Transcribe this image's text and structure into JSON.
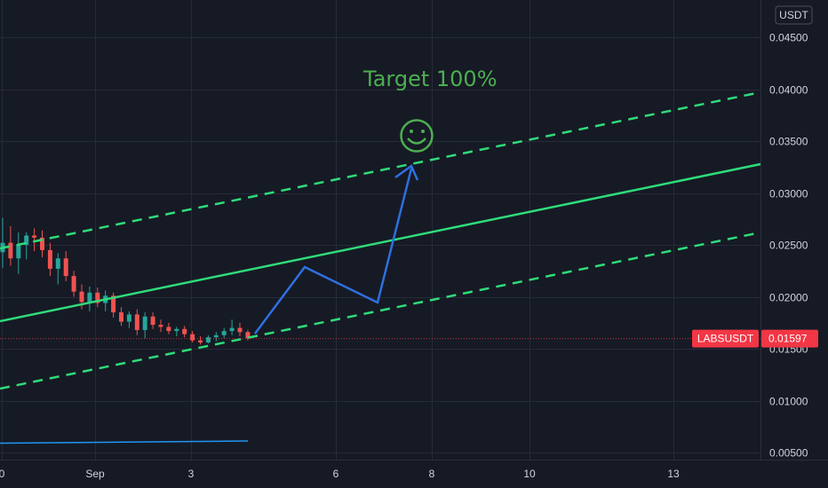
{
  "chart_data": {
    "type": "candlestick",
    "symbol": "LABSUSDT",
    "currency": "USDT",
    "last_price": "0.01597",
    "y_ticks": [
      "0.04500",
      "0.04000",
      "0.03500",
      "0.03000",
      "0.02500",
      "0.02000",
      "0.01500",
      "0.01000",
      "0.00500"
    ],
    "ylim": [
      0.0035,
      0.048
    ],
    "x_ticks": [
      "0",
      "Sep",
      "3",
      "6",
      "8",
      "10",
      "13"
    ],
    "annotation": "Target 100%",
    "candles": [
      {
        "o": 0.0243,
        "h": 0.0276,
        "l": 0.0228,
        "c": 0.0252
      },
      {
        "o": 0.0252,
        "h": 0.0268,
        "l": 0.023,
        "c": 0.0237
      },
      {
        "o": 0.0237,
        "h": 0.0262,
        "l": 0.0222,
        "c": 0.025
      },
      {
        "o": 0.025,
        "h": 0.0262,
        "l": 0.0236,
        "c": 0.0259
      },
      {
        "o": 0.0259,
        "h": 0.0266,
        "l": 0.0244,
        "c": 0.0257
      },
      {
        "o": 0.0257,
        "h": 0.0264,
        "l": 0.0238,
        "c": 0.0245
      },
      {
        "o": 0.0245,
        "h": 0.0252,
        "l": 0.022,
        "c": 0.0227
      },
      {
        "o": 0.0227,
        "h": 0.0242,
        "l": 0.0212,
        "c": 0.0237
      },
      {
        "o": 0.0237,
        "h": 0.0244,
        "l": 0.0215,
        "c": 0.022
      },
      {
        "o": 0.022,
        "h": 0.0225,
        "l": 0.02,
        "c": 0.0205
      },
      {
        "o": 0.0205,
        "h": 0.0212,
        "l": 0.0188,
        "c": 0.0195
      },
      {
        "o": 0.0195,
        "h": 0.021,
        "l": 0.0186,
        "c": 0.0204
      },
      {
        "o": 0.0204,
        "h": 0.0209,
        "l": 0.019,
        "c": 0.0194
      },
      {
        "o": 0.0194,
        "h": 0.0206,
        "l": 0.0186,
        "c": 0.0201
      },
      {
        "o": 0.0201,
        "h": 0.0204,
        "l": 0.018,
        "c": 0.0185
      },
      {
        "o": 0.0185,
        "h": 0.019,
        "l": 0.0172,
        "c": 0.0176
      },
      {
        "o": 0.0176,
        "h": 0.0186,
        "l": 0.017,
        "c": 0.0183
      },
      {
        "o": 0.0183,
        "h": 0.0188,
        "l": 0.0163,
        "c": 0.0168
      },
      {
        "o": 0.0168,
        "h": 0.0185,
        "l": 0.016,
        "c": 0.0181
      },
      {
        "o": 0.0181,
        "h": 0.0185,
        "l": 0.0169,
        "c": 0.0173
      },
      {
        "o": 0.0173,
        "h": 0.0178,
        "l": 0.0166,
        "c": 0.0171
      },
      {
        "o": 0.0171,
        "h": 0.0175,
        "l": 0.0164,
        "c": 0.0167
      },
      {
        "o": 0.0167,
        "h": 0.0171,
        "l": 0.0162,
        "c": 0.0169
      },
      {
        "o": 0.0169,
        "h": 0.0172,
        "l": 0.0161,
        "c": 0.0164
      },
      {
        "o": 0.0164,
        "h": 0.0167,
        "l": 0.0156,
        "c": 0.0158
      },
      {
        "o": 0.0158,
        "h": 0.0162,
        "l": 0.0154,
        "c": 0.0156
      },
      {
        "o": 0.0156,
        "h": 0.0163,
        "l": 0.0155,
        "c": 0.0161
      },
      {
        "o": 0.0161,
        "h": 0.0166,
        "l": 0.0157,
        "c": 0.0163
      },
      {
        "o": 0.0163,
        "h": 0.017,
        "l": 0.016,
        "c": 0.0167
      },
      {
        "o": 0.0167,
        "h": 0.0178,
        "l": 0.0163,
        "c": 0.017
      },
      {
        "o": 0.017,
        "h": 0.0175,
        "l": 0.0162,
        "c": 0.0166
      },
      {
        "o": 0.0166,
        "h": 0.0168,
        "l": 0.0158,
        "c": 0.016
      }
    ],
    "colors": {
      "background": "#161a25",
      "up": "#26a69a",
      "down": "#ef5350",
      "channel": "#2fdc7a",
      "projection": "#2f6fe0",
      "indicator": "#2196f3",
      "label": "#4caf50",
      "price_badge": "#f23645",
      "grid": "#262b38",
      "axis_text": "#d1d4dc"
    }
  }
}
